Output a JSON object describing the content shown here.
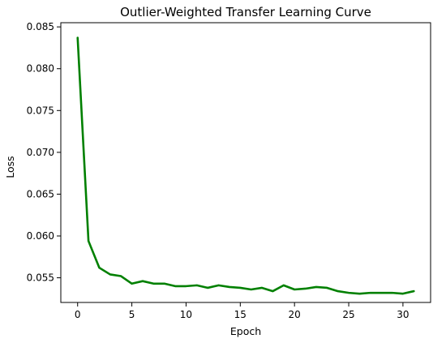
{
  "chart_data": {
    "type": "line",
    "title": "Outlier-Weighted Transfer Learning Curve",
    "xlabel": "Epoch",
    "ylabel": "Loss",
    "xlim": [
      -1.55,
      32.55
    ],
    "ylim": [
      0.05205,
      0.0855
    ],
    "xticks": [
      0,
      5,
      10,
      15,
      20,
      25,
      30
    ],
    "yticks": [
      0.055,
      0.06,
      0.065,
      0.07,
      0.075,
      0.08,
      0.085
    ],
    "ytick_format": 3,
    "grid": false,
    "legend": "none",
    "series": [
      {
        "color": "#008000",
        "x": [
          0,
          1,
          2,
          3,
          4,
          5,
          6,
          7,
          8,
          9,
          10,
          11,
          12,
          13,
          14,
          15,
          16,
          17,
          18,
          19,
          20,
          21,
          22,
          23,
          24,
          25,
          26,
          27,
          28,
          29,
          30,
          31
        ],
        "y": [
          0.0837,
          0.0594,
          0.0562,
          0.0554,
          0.0552,
          0.0543,
          0.0546,
          0.0543,
          0.0543,
          0.054,
          0.054,
          0.0541,
          0.0538,
          0.0541,
          0.0539,
          0.0538,
          0.0536,
          0.0538,
          0.0534,
          0.0541,
          0.0536,
          0.0537,
          0.0539,
          0.0538,
          0.0534,
          0.0532,
          0.0531,
          0.0532,
          0.0532,
          0.0532,
          0.0531,
          0.0534
        ]
      }
    ]
  }
}
